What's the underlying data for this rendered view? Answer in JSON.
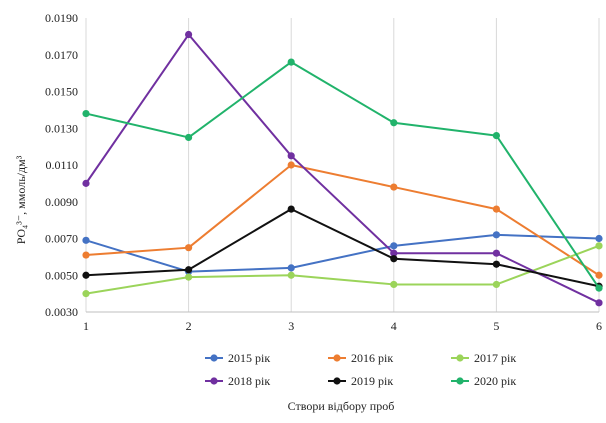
{
  "chart_data": {
    "type": "line",
    "title": "",
    "xlabel": "Створи відбору проб",
    "ylabel": "PO₄³⁻, ммоль/дм³",
    "x": [
      1,
      2,
      3,
      4,
      5,
      6
    ],
    "x_tick_labels": [
      "1",
      "2",
      "3",
      "4",
      "5",
      "6"
    ],
    "ylim": [
      0.003,
      0.019
    ],
    "y_ticks": [
      0.003,
      0.005,
      0.007,
      0.009,
      0.011,
      0.013,
      0.015,
      0.017,
      0.019
    ],
    "y_tick_labels": [
      "0.0030",
      "0.0050",
      "0.0070",
      "0.0090",
      "0.0110",
      "0.0130",
      "0.0150",
      "0.0170",
      "0.0190"
    ],
    "grid": "vertical",
    "legend_position": "bottom",
    "series": [
      {
        "name": "2015 рік",
        "color": "#4472c4",
        "values": [
          0.0069,
          0.0052,
          0.0054,
          0.0066,
          0.0072,
          0.007
        ]
      },
      {
        "name": "2016 рік",
        "color": "#ed7d31",
        "values": [
          0.0061,
          0.0065,
          0.011,
          0.0098,
          0.0086,
          0.005
        ]
      },
      {
        "name": "2017 рік",
        "color": "#9bd45a",
        "values": [
          0.004,
          0.0049,
          0.005,
          0.0045,
          0.0045,
          0.0066
        ]
      },
      {
        "name": "2018 рік",
        "color": "#7030a0",
        "values": [
          0.01,
          0.0181,
          0.0115,
          0.0062,
          0.0062,
          0.0035
        ]
      },
      {
        "name": "2019 рік",
        "color": "#111111",
        "values": [
          0.005,
          0.0053,
          0.0086,
          0.0059,
          0.0056,
          0.0044
        ]
      },
      {
        "name": "2020 рік",
        "color": "#21b36b",
        "values": [
          0.0138,
          0.0125,
          0.0166,
          0.0133,
          0.0126,
          0.0043
        ]
      }
    ]
  }
}
